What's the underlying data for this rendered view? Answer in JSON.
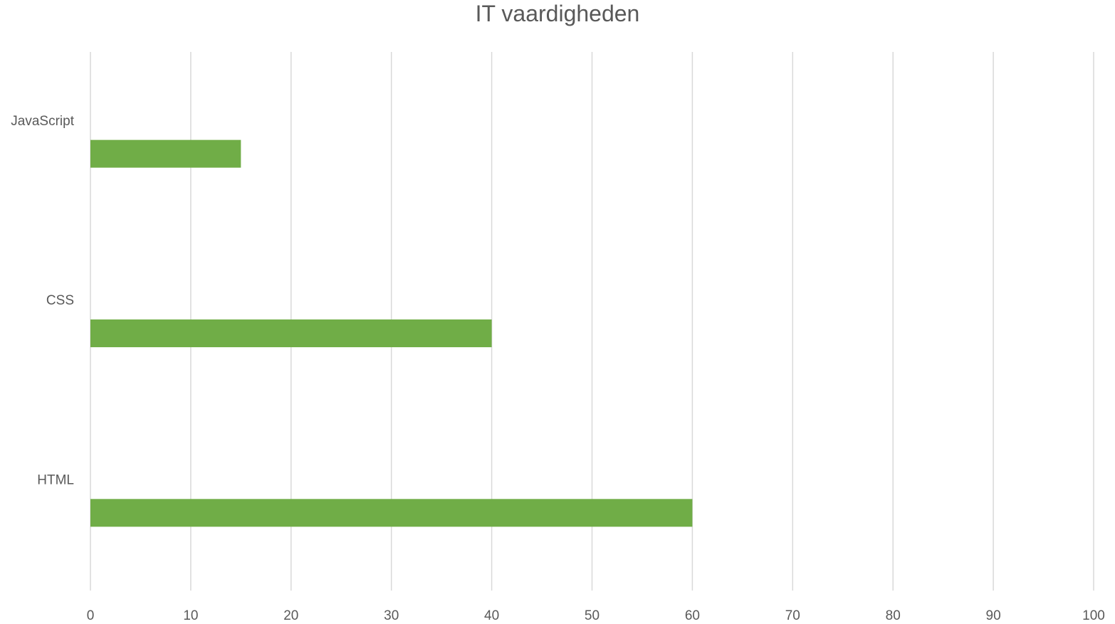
{
  "chart_data": {
    "type": "bar",
    "orientation": "horizontal",
    "title": "IT vaardigheden",
    "categories": [
      "HTML",
      "CSS",
      "JavaScript"
    ],
    "series": [
      {
        "values": [
          60,
          40,
          15
        ],
        "color": "#70AD47"
      }
    ],
    "xlim": [
      0,
      100
    ],
    "xticks": [
      0,
      10,
      20,
      30,
      40,
      50,
      60,
      70,
      80,
      90,
      100
    ],
    "xlabel": "",
    "ylabel": "",
    "grid": "vertical",
    "gridline_color": "#D9D9D9",
    "text_color": "#595959"
  }
}
